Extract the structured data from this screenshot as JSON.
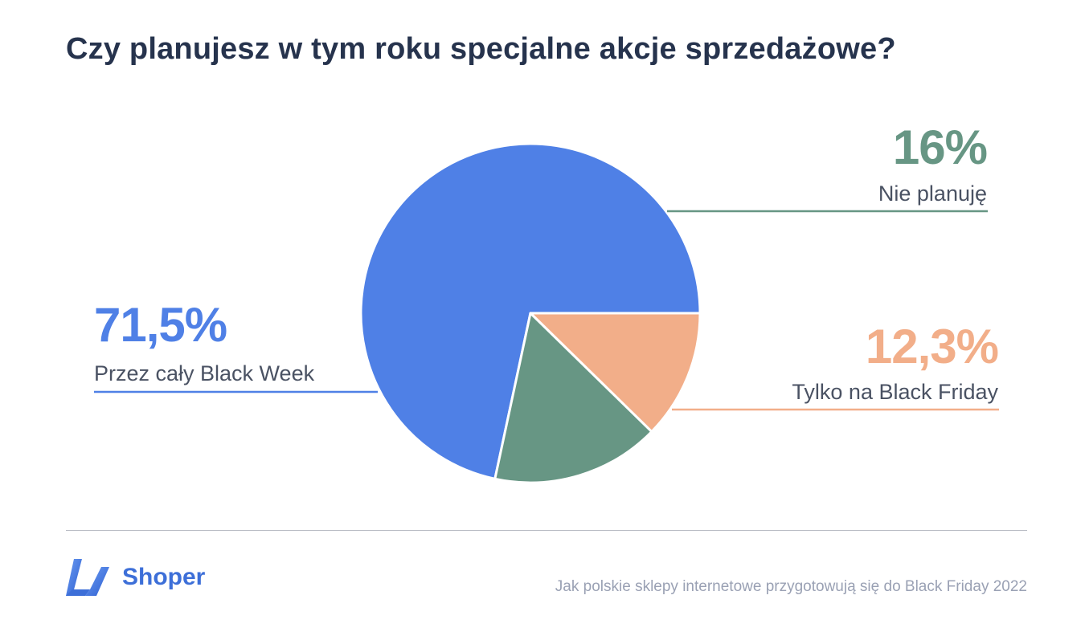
{
  "title": "Czy planujesz w tym roku specjalne akcje sprzedażowe?",
  "chart_data": {
    "type": "pie",
    "slices": [
      {
        "label": "Przez cały Black Week",
        "value": 71.5,
        "value_label": "71,5%",
        "color": "#4f80e6"
      },
      {
        "label": "Tylko na Black Friday",
        "value": 12.3,
        "value_label": "12,3%",
        "color": "#f2ae89"
      },
      {
        "label": "Nie planuję",
        "value": 16,
        "value_label": "16%",
        "color": "#679684"
      }
    ]
  },
  "footer": {
    "brand": "Shoper",
    "caption": "Jak polskie sklepy internetowe przygotowują się do Black Friday 2022"
  }
}
